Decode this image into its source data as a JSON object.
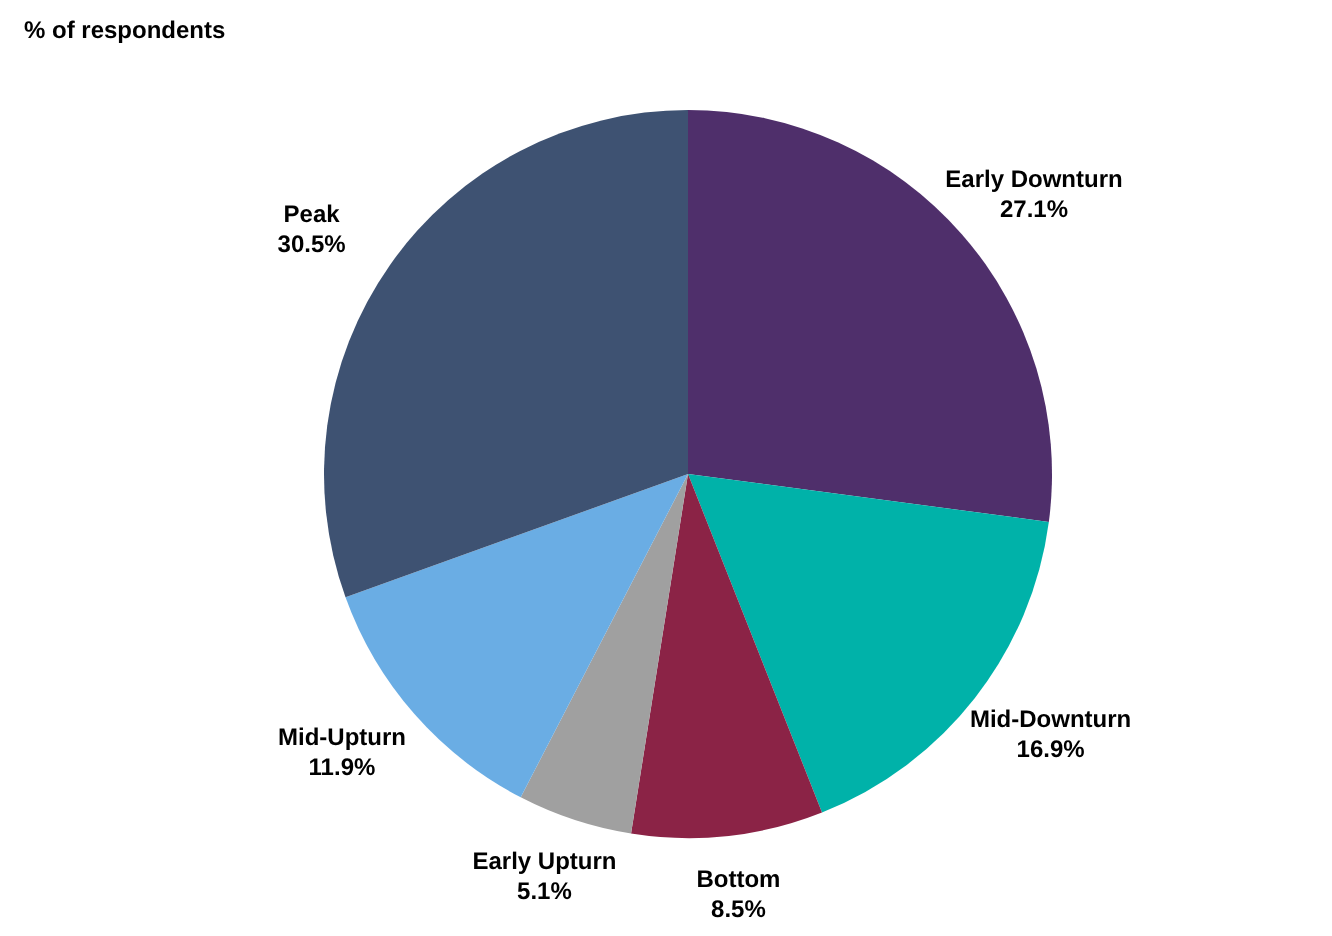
{
  "chart_data": {
    "type": "pie",
    "title": "% of respondents",
    "categories": [
      "Early Downturn",
      "Mid-Downturn",
      "Bottom",
      "Early Upturn",
      "Mid-Upturn",
      "Peak"
    ],
    "values": [
      27.1,
      16.9,
      8.5,
      5.1,
      11.9,
      30.5
    ],
    "value_labels": [
      "27.1%",
      "16.9%",
      "8.5%",
      "5.1%",
      "11.9%",
      "30.5%"
    ],
    "colors": [
      "#4f2f6b",
      "#00b2a9",
      "#8b2346",
      "#a0a0a0",
      "#6aade4",
      "#3e5272"
    ],
    "legend": false
  }
}
